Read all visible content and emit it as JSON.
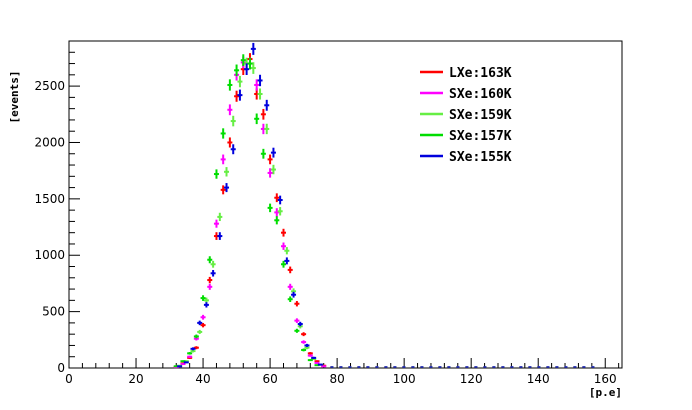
{
  "chart_data": {
    "type": "scatter",
    "title": "",
    "xlabel": "[p.e]",
    "ylabel": "[events]",
    "xlim": [
      0,
      165
    ],
    "ylim": [
      0,
      2900
    ],
    "xticks": [
      0,
      20,
      40,
      60,
      80,
      100,
      120,
      140,
      160
    ],
    "yticks": [
      0,
      500,
      1000,
      1500,
      2000,
      2500
    ],
    "grid": false,
    "legend_position": "top-right",
    "series": [
      {
        "name": "LXe:163K",
        "color": "#ff0000",
        "points": [
          [
            32,
            10
          ],
          [
            34,
            40
          ],
          [
            36,
            90
          ],
          [
            38,
            180
          ],
          [
            40,
            380
          ],
          [
            42,
            780
          ],
          [
            44,
            1170
          ],
          [
            46,
            1580
          ],
          [
            48,
            2000
          ],
          [
            50,
            2410
          ],
          [
            52,
            2650
          ],
          [
            54,
            2740
          ],
          [
            56,
            2430
          ],
          [
            58,
            2250
          ],
          [
            60,
            1850
          ],
          [
            62,
            1510
          ],
          [
            64,
            1200
          ],
          [
            66,
            870
          ],
          [
            68,
            570
          ],
          [
            70,
            300
          ],
          [
            72,
            130
          ],
          [
            74,
            60
          ],
          [
            76,
            20
          ]
        ]
      },
      {
        "name": "SXe:160K",
        "color": "#ff00ff",
        "points": [
          [
            32,
            8
          ],
          [
            34,
            35
          ],
          [
            36,
            100
          ],
          [
            38,
            260
          ],
          [
            40,
            450
          ],
          [
            42,
            720
          ],
          [
            44,
            1280
          ],
          [
            46,
            1850
          ],
          [
            48,
            2290
          ],
          [
            50,
            2600
          ],
          [
            52,
            2710
          ],
          [
            54,
            2700
          ],
          [
            56,
            2510
          ],
          [
            58,
            2120
          ],
          [
            60,
            1730
          ],
          [
            62,
            1380
          ],
          [
            64,
            1080
          ],
          [
            66,
            720
          ],
          [
            68,
            420
          ],
          [
            70,
            230
          ],
          [
            72,
            110
          ],
          [
            74,
            45
          ],
          [
            76,
            15
          ]
        ]
      },
      {
        "name": "SXe:159K",
        "color": "#66ee44",
        "points": [
          [
            33,
            20
          ],
          [
            35,
            60
          ],
          [
            37,
            150
          ],
          [
            39,
            320
          ],
          [
            41,
            600
          ],
          [
            43,
            920
          ],
          [
            45,
            1340
          ],
          [
            47,
            1740
          ],
          [
            49,
            2190
          ],
          [
            51,
            2540
          ],
          [
            53,
            2700
          ],
          [
            55,
            2660
          ],
          [
            57,
            2430
          ],
          [
            59,
            2120
          ],
          [
            61,
            1760
          ],
          [
            63,
            1390
          ],
          [
            65,
            1040
          ],
          [
            67,
            680
          ],
          [
            69,
            370
          ],
          [
            71,
            180
          ],
          [
            73,
            80
          ],
          [
            75,
            30
          ]
        ]
      },
      {
        "name": "SXe:157K",
        "color": "#00dd00",
        "points": [
          [
            32,
            15
          ],
          [
            34,
            60
          ],
          [
            36,
            130
          ],
          [
            38,
            280
          ],
          [
            40,
            620
          ],
          [
            42,
            960
          ],
          [
            44,
            1720
          ],
          [
            46,
            2080
          ],
          [
            48,
            2510
          ],
          [
            50,
            2640
          ],
          [
            52,
            2730
          ],
          [
            54,
            2700
          ],
          [
            56,
            2210
          ],
          [
            58,
            1900
          ],
          [
            60,
            1420
          ],
          [
            62,
            1310
          ],
          [
            64,
            920
          ],
          [
            66,
            610
          ],
          [
            68,
            330
          ],
          [
            70,
            160
          ],
          [
            72,
            70
          ],
          [
            74,
            25
          ]
        ]
      },
      {
        "name": "SXe:155K",
        "color": "#0000dd",
        "points": [
          [
            33,
            15
          ],
          [
            35,
            50
          ],
          [
            37,
            170
          ],
          [
            39,
            400
          ],
          [
            41,
            560
          ],
          [
            43,
            840
          ],
          [
            45,
            1170
          ],
          [
            47,
            1600
          ],
          [
            49,
            1940
          ],
          [
            51,
            2420
          ],
          [
            53,
            2650
          ],
          [
            55,
            2830
          ],
          [
            57,
            2550
          ],
          [
            59,
            2330
          ],
          [
            61,
            1910
          ],
          [
            63,
            1490
          ],
          [
            65,
            950
          ],
          [
            67,
            650
          ],
          [
            69,
            390
          ],
          [
            71,
            200
          ],
          [
            73,
            90
          ],
          [
            75,
            30
          ]
        ]
      }
    ]
  }
}
